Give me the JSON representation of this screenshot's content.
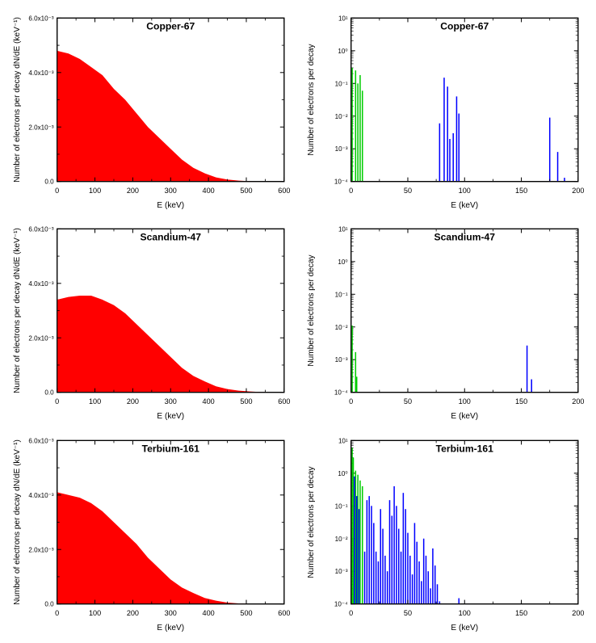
{
  "panels": [
    {
      "type": "area",
      "title": "Copper-67",
      "xlabel": "E (keV)",
      "ylabel": "Number of electrons per decay dN/dE (keV⁻¹)",
      "xlim": [
        0,
        600
      ],
      "xtick_step": 100,
      "ylim": [
        0,
        0.006
      ],
      "yticks": [
        0,
        0.002,
        0.004,
        0.006
      ],
      "ytick_labels": [
        "0.0",
        "2.0x10⁻³",
        "4.0x10⁻³",
        "6.0x10⁻³"
      ],
      "fill_color": "#ff0000",
      "background_color": "#ffffff",
      "curve": [
        [
          0,
          0.0048
        ],
        [
          30,
          0.0047
        ],
        [
          60,
          0.0045
        ],
        [
          90,
          0.0042
        ],
        [
          120,
          0.0039
        ],
        [
          150,
          0.0034
        ],
        [
          180,
          0.003
        ],
        [
          210,
          0.0025
        ],
        [
          240,
          0.002
        ],
        [
          270,
          0.0016
        ],
        [
          300,
          0.0012
        ],
        [
          330,
          0.0008
        ],
        [
          360,
          0.0005
        ],
        [
          390,
          0.0003
        ],
        [
          420,
          0.00015
        ],
        [
          450,
          7e-05
        ],
        [
          480,
          3e-05
        ],
        [
          510,
          1e-05
        ],
        [
          540,
          0
        ],
        [
          600,
          0
        ]
      ]
    },
    {
      "type": "bars-log",
      "title": "Copper-67",
      "xlabel": "E (keV)",
      "ylabel": "Number of electrons per decay",
      "xlim": [
        0,
        200
      ],
      "xtick_step": 50,
      "ylim_log": [
        -4,
        1
      ],
      "ytick_labels": [
        "10⁻⁴",
        "10⁻³",
        "10⁻²",
        "10⁻¹",
        "10⁰",
        "10¹"
      ],
      "background_color": "#ffffff",
      "green_color": "#00cc00",
      "blue_color": "#0000ff",
      "green_bars": [
        [
          1,
          0.3
        ],
        [
          4,
          0.25
        ],
        [
          6,
          0.1
        ],
        [
          8,
          0.18
        ],
        [
          10,
          0.06
        ]
      ],
      "blue_bars": [
        [
          78,
          0.006
        ],
        [
          82,
          0.15
        ],
        [
          85,
          0.08
        ],
        [
          87,
          0.002
        ],
        [
          90,
          0.003
        ],
        [
          93,
          0.04
        ],
        [
          95,
          0.012
        ],
        [
          175,
          0.009
        ],
        [
          182,
          0.0008
        ],
        [
          188,
          0.00013
        ]
      ]
    },
    {
      "type": "area",
      "title": "Scandium-47",
      "xlabel": "E (keV)",
      "ylabel": "Number of electrons per decay dN/dE (keV⁻¹)",
      "xlim": [
        0,
        600
      ],
      "xtick_step": 100,
      "ylim": [
        0,
        0.006
      ],
      "yticks": [
        0,
        0.002,
        0.004,
        0.006
      ],
      "ytick_labels": [
        "0.0",
        "2.0x10⁻³",
        "4.0x10⁻³",
        "6.0x10⁻³"
      ],
      "fill_color": "#ff0000",
      "background_color": "#ffffff",
      "curve": [
        [
          0,
          0.0034
        ],
        [
          30,
          0.0035
        ],
        [
          60,
          0.00355
        ],
        [
          90,
          0.00355
        ],
        [
          120,
          0.0034
        ],
        [
          150,
          0.0032
        ],
        [
          180,
          0.0029
        ],
        [
          210,
          0.0025
        ],
        [
          240,
          0.0021
        ],
        [
          270,
          0.0017
        ],
        [
          300,
          0.0013
        ],
        [
          330,
          0.0009
        ],
        [
          360,
          0.0006
        ],
        [
          390,
          0.0004
        ],
        [
          420,
          0.00022
        ],
        [
          450,
          0.00012
        ],
        [
          480,
          6e-05
        ],
        [
          510,
          3e-05
        ],
        [
          540,
          1e-05
        ],
        [
          570,
          0
        ],
        [
          600,
          0
        ]
      ]
    },
    {
      "type": "bars-log",
      "title": "Scandium-47",
      "xlabel": "E (keV)",
      "ylabel": "Number of electrons per decay",
      "xlim": [
        0,
        200
      ],
      "xtick_step": 50,
      "ylim_log": [
        -4,
        1
      ],
      "ytick_labels": [
        "10⁻⁴",
        "10⁻³",
        "10⁻²",
        "10⁻¹",
        "10⁰",
        "10¹"
      ],
      "background_color": "#ffffff",
      "green_color": "#00cc00",
      "blue_color": "#0000ff",
      "green_bars": [
        [
          1,
          0.011
        ],
        [
          4,
          0.0017
        ],
        [
          5,
          0.0003
        ]
      ],
      "blue_bars": [
        [
          155,
          0.0027
        ],
        [
          159,
          0.00025
        ]
      ]
    },
    {
      "type": "area",
      "title": "Terbium-161",
      "xlabel": "E (keV)",
      "ylabel": "Number of electrons per decay dN/dE (keV⁻¹)",
      "xlim": [
        0,
        600
      ],
      "xtick_step": 100,
      "ylim": [
        0,
        0.006
      ],
      "yticks": [
        0,
        0.002,
        0.004,
        0.006
      ],
      "ytick_labels": [
        "0.0",
        "2.0x10⁻³",
        "4.0x10⁻³",
        "6.0x10⁻³"
      ],
      "fill_color": "#ff0000",
      "background_color": "#ffffff",
      "curve": [
        [
          0,
          0.0041
        ],
        [
          30,
          0.004
        ],
        [
          60,
          0.0039
        ],
        [
          90,
          0.0037
        ],
        [
          120,
          0.0034
        ],
        [
          150,
          0.003
        ],
        [
          180,
          0.0026
        ],
        [
          210,
          0.0022
        ],
        [
          240,
          0.0017
        ],
        [
          270,
          0.0013
        ],
        [
          300,
          0.0009
        ],
        [
          330,
          0.0006
        ],
        [
          360,
          0.0004
        ],
        [
          390,
          0.00022
        ],
        [
          420,
          0.00012
        ],
        [
          450,
          5e-05
        ],
        [
          480,
          2e-05
        ],
        [
          510,
          5e-06
        ],
        [
          540,
          0
        ],
        [
          600,
          0
        ]
      ]
    },
    {
      "type": "bars-log",
      "title": "Terbium-161",
      "xlabel": "E (keV)",
      "ylabel": "Number of electrons per decay",
      "xlim": [
        0,
        200
      ],
      "xtick_step": 50,
      "ylim_log": [
        -4,
        1
      ],
      "ytick_labels": [
        "10⁻⁴",
        "10⁻³",
        "10⁻²",
        "10⁻¹",
        "10⁰",
        "10¹"
      ],
      "background_color": "#ffffff",
      "green_color": "#00cc00",
      "blue_color": "#0000ff",
      "green_bars": [
        [
          1,
          6
        ],
        [
          2,
          3
        ],
        [
          4,
          1.2
        ],
        [
          6,
          0.9
        ],
        [
          8,
          0.6
        ],
        [
          10,
          0.4
        ]
      ],
      "blue_bars": [
        [
          3,
          0.8
        ],
        [
          5,
          0.2
        ],
        [
          7,
          0.08
        ],
        [
          12,
          0.004
        ],
        [
          14,
          0.15
        ],
        [
          16,
          0.2
        ],
        [
          18,
          0.1
        ],
        [
          20,
          0.03
        ],
        [
          22,
          0.004
        ],
        [
          24,
          0.002
        ],
        [
          26,
          0.08
        ],
        [
          28,
          0.02
        ],
        [
          30,
          0.003
        ],
        [
          32,
          0.001
        ],
        [
          34,
          0.15
        ],
        [
          36,
          0.05
        ],
        [
          38,
          0.4
        ],
        [
          40,
          0.1
        ],
        [
          42,
          0.02
        ],
        [
          44,
          0.004
        ],
        [
          46,
          0.25
        ],
        [
          48,
          0.08
        ],
        [
          50,
          0.015
        ],
        [
          52,
          0.003
        ],
        [
          54,
          0.0008
        ],
        [
          56,
          0.03
        ],
        [
          58,
          0.008
        ],
        [
          60,
          0.002
        ],
        [
          62,
          0.0005
        ],
        [
          64,
          0.01
        ],
        [
          66,
          0.003
        ],
        [
          68,
          0.001
        ],
        [
          70,
          0.0003
        ],
        [
          72,
          0.005
        ],
        [
          74,
          0.0015
        ],
        [
          76,
          0.0004
        ],
        [
          78,
          0.00012
        ],
        [
          95,
          0.00015
        ]
      ]
    }
  ]
}
